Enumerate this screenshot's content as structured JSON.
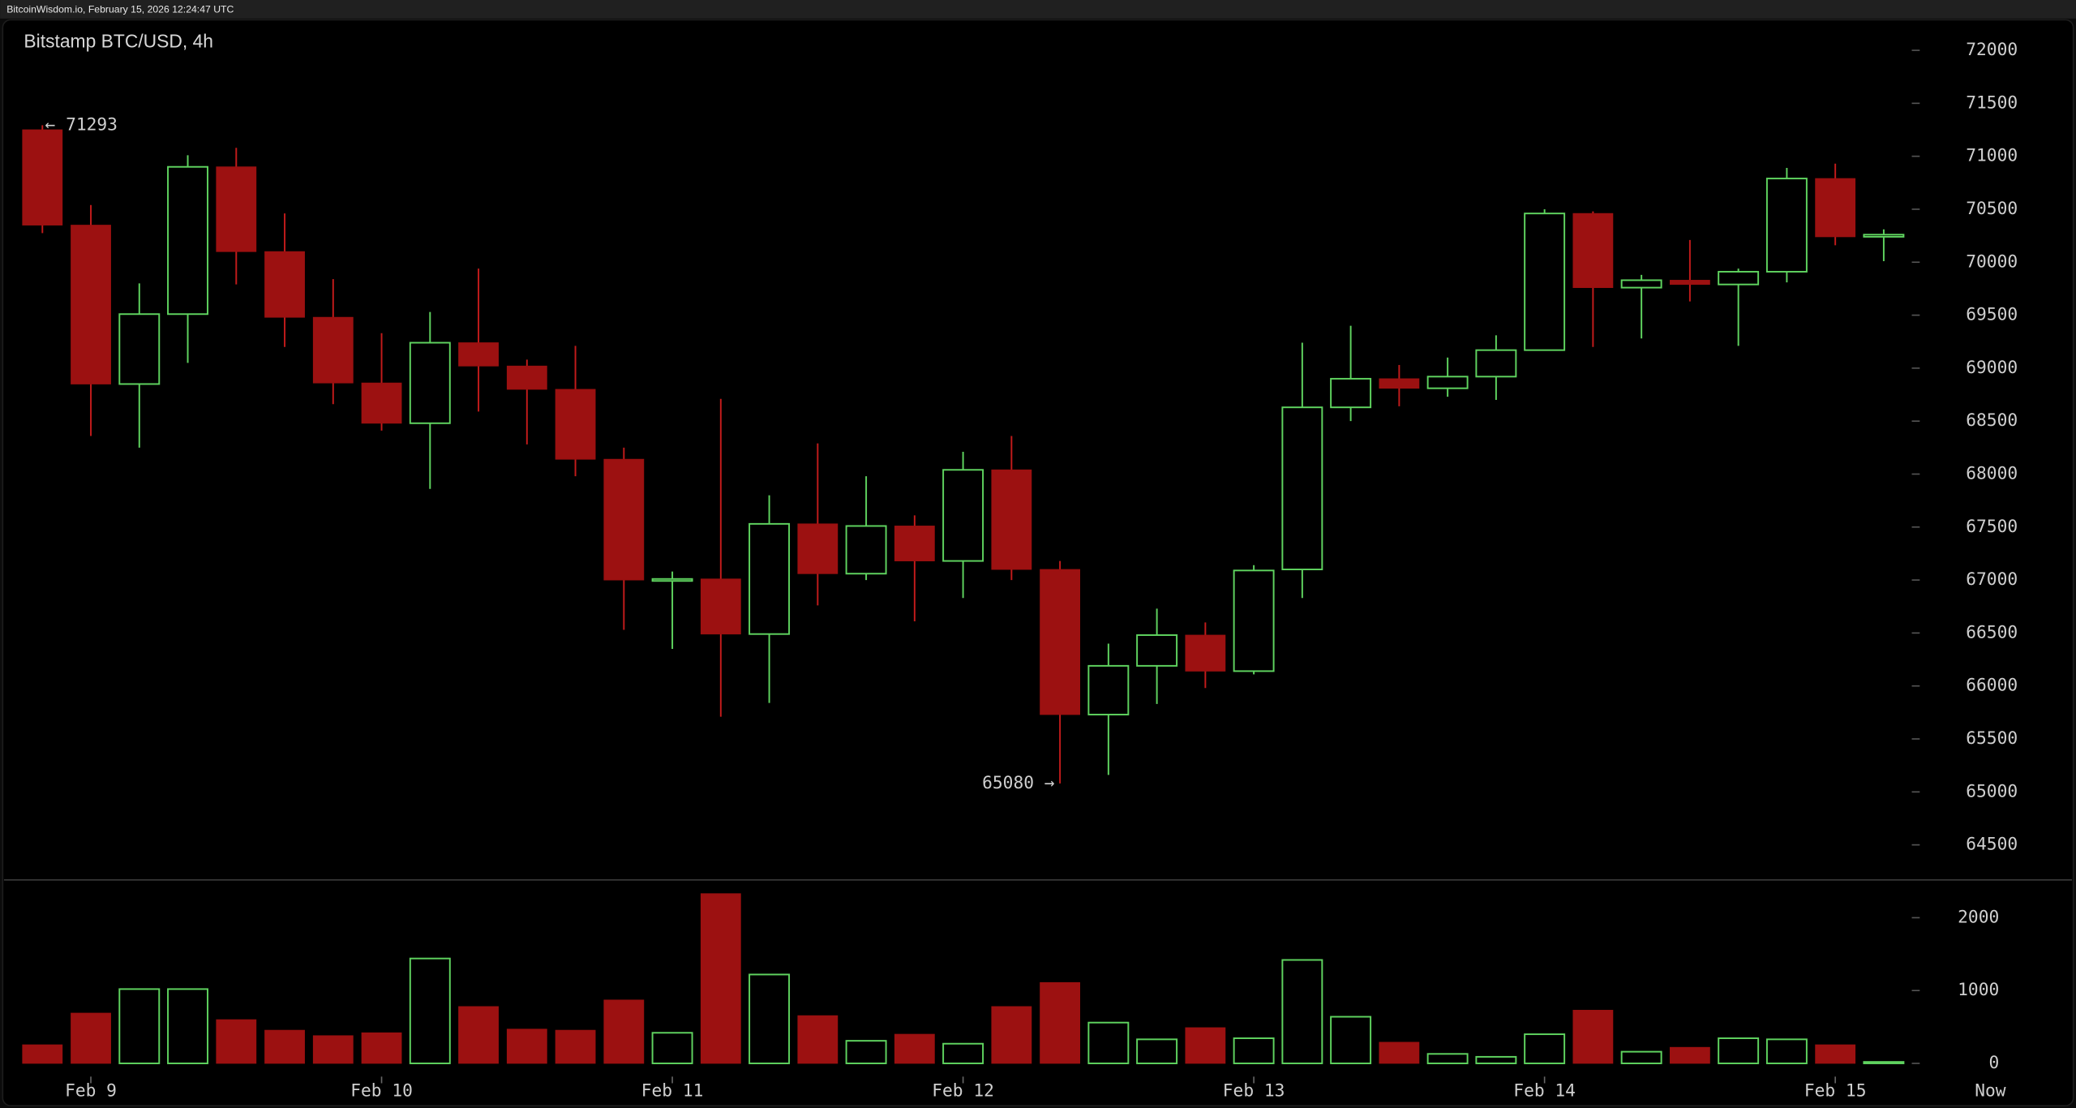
{
  "header": {
    "text": "BitcoinWisdom.io, February 15, 2026 12:24:47 UTC"
  },
  "chart_data": [
    {
      "type": "candlestick",
      "title": "Bitstamp BTC/USD, 4h",
      "categories": [
        null,
        "Feb 9",
        null,
        null,
        null,
        null,
        null,
        "Feb 10",
        null,
        null,
        null,
        null,
        null,
        "Feb 11",
        null,
        null,
        null,
        null,
        null,
        "Feb 12",
        null,
        null,
        null,
        null,
        null,
        "Feb 13",
        null,
        null,
        null,
        null,
        null,
        "Feb 14",
        null,
        null,
        null,
        null,
        null,
        "Feb 15",
        null
      ],
      "now_label": "Now",
      "open": [
        71250,
        70350,
        68850,
        69510,
        70900,
        70100,
        69480,
        68860,
        68480,
        69240,
        69020,
        68800,
        68140,
        67000,
        67010,
        66490,
        67530,
        67060,
        67510,
        67180,
        68040,
        67100,
        65730,
        66190,
        66480,
        66140,
        67100,
        68630,
        68900,
        68810,
        68920,
        69170,
        70460,
        69760,
        69830,
        69790,
        69910,
        70790,
        70240
      ],
      "high": [
        71293,
        70540,
        69800,
        71010,
        71080,
        70460,
        69840,
        69330,
        69530,
        69940,
        69080,
        69210,
        68250,
        67080,
        68710,
        67800,
        68290,
        67980,
        67610,
        68210,
        68360,
        67180,
        66400,
        66730,
        66600,
        67140,
        69240,
        69400,
        69030,
        69100,
        69310,
        70500,
        70480,
        69880,
        70210,
        69940,
        70890,
        70930,
        70310
      ],
      "low": [
        70275,
        68360,
        68250,
        69050,
        69790,
        69200,
        68660,
        68410,
        67860,
        68590,
        68280,
        67980,
        66530,
        66350,
        65710,
        65840,
        66760,
        67000,
        66610,
        66830,
        67000,
        65080,
        65160,
        65830,
        65980,
        66110,
        66830,
        68500,
        68640,
        68730,
        68700,
        69170,
        69200,
        69280,
        69630,
        69210,
        69810,
        70160,
        70010
      ],
      "close": [
        70350,
        68850,
        69510,
        70900,
        70100,
        69480,
        68860,
        68480,
        69240,
        69020,
        68800,
        68140,
        67000,
        67010,
        66490,
        67530,
        67060,
        67510,
        67180,
        68040,
        67100,
        65730,
        66190,
        66480,
        66140,
        67090,
        68630,
        68900,
        68810,
        68920,
        69170,
        70460,
        69760,
        69830,
        69790,
        69910,
        70790,
        70240,
        70260
      ],
      "high_label": "← 71293",
      "low_label": "65080 →",
      "up_color": "#5fd35f",
      "down_color": "#9c1111",
      "ylim": [
        64175,
        72225
      ],
      "yticks": [
        64500,
        65000,
        65500,
        66000,
        66500,
        67000,
        67500,
        68000,
        68500,
        69000,
        69500,
        70000,
        70500,
        71000,
        71500,
        72000
      ]
    },
    {
      "type": "volume",
      "values": [
        255,
        690,
        1020,
        1020,
        600,
        455,
        380,
        420,
        1440,
        780,
        470,
        455,
        870,
        420,
        2330,
        1220,
        655,
        310,
        400,
        270,
        780,
        1110,
        560,
        330,
        490,
        345,
        1420,
        640,
        290,
        130,
        90,
        400,
        730,
        160,
        220,
        345,
        330,
        255,
        20
      ],
      "ylim": [
        0,
        2500
      ],
      "yticks": [
        0,
        1000,
        2000
      ]
    }
  ]
}
